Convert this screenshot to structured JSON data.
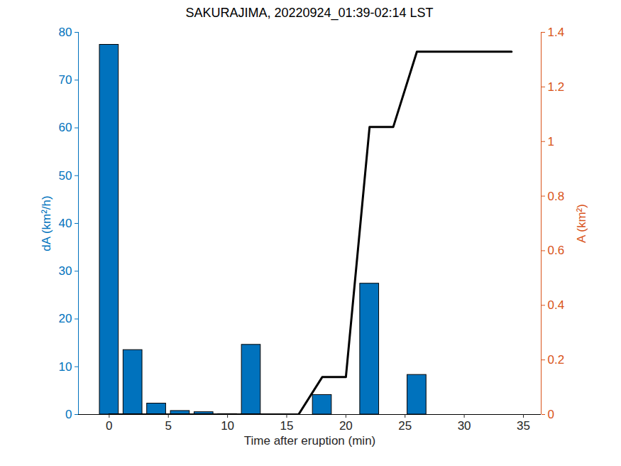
{
  "chart_data": {
    "type": "bar",
    "title": "SAKURAJIMA, 20220924_01:39-02:14 LST",
    "xlabel": "Time after eruption (min)",
    "ylabel": "dA (km²/h)",
    "y2label": "A (km²)",
    "x": [
      0,
      2,
      4,
      6,
      8,
      10,
      12,
      14,
      16,
      18,
      20,
      22,
      24,
      26,
      28,
      30,
      32,
      34
    ],
    "series": [
      {
        "type": "bar",
        "color": "#0072BD",
        "values": [
          77.4,
          13.5,
          2.3,
          0.75,
          0.5,
          0.1,
          14.6,
          0,
          0,
          4.1,
          0,
          27.4,
          0,
          8.3,
          0,
          0,
          0,
          0
        ]
      },
      {
        "type": "line",
        "axis": "y2",
        "color": "#000000",
        "values": [
          0,
          0,
          0,
          0,
          0,
          0,
          0,
          0,
          0,
          0.137,
          0.137,
          1.053,
          1.053,
          1.329,
          1.329,
          1.329,
          1.329,
          1.329
        ]
      }
    ],
    "xlim": [
      -2.6,
      36.5
    ],
    "xticks": [
      0,
      5,
      10,
      15,
      20,
      25,
      30,
      35
    ],
    "ylim": [
      0,
      80
    ],
    "yticks": [
      0,
      10,
      20,
      30,
      40,
      50,
      60,
      70,
      80
    ],
    "y2lim": [
      0,
      1.4
    ],
    "y2ticks": [
      0,
      0.2,
      0.4,
      0.6,
      0.8,
      1,
      1.2,
      1.4
    ],
    "y2color": "#D95319",
    "grid": false
  }
}
